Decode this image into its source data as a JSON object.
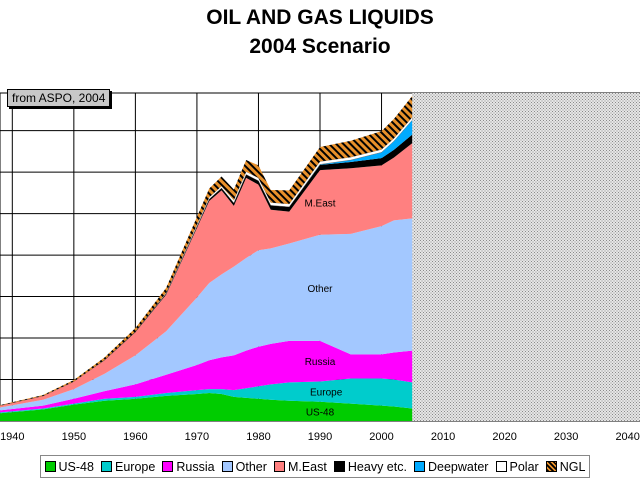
{
  "page": {
    "title_line1": "OIL AND GAS LIQUIDS",
    "title_line2": "2004 Scenario",
    "source_note": "from ASPO, 2004"
  },
  "chart_data": {
    "type": "area",
    "stacking": "stacked",
    "title": "OIL AND GAS LIQUIDS - 2004 Scenario",
    "xlabel": "",
    "ylabel": "",
    "xlim": [
      1938,
      2042
    ],
    "ylim": [
      0,
      34
    ],
    "y_gridlines": [
      4.3,
      8.6,
      12.9,
      17.2,
      21.5,
      25.8,
      30.1
    ],
    "x_ticks": [
      1940,
      1950,
      1960,
      1970,
      1980,
      1990,
      2000,
      2010,
      2020,
      2030,
      2040
    ],
    "x_tick_labels": [
      "1940",
      "1950",
      "1960",
      "1970",
      "1980",
      "1990",
      "2000",
      "2010",
      "2020",
      "2030",
      "2040"
    ],
    "grid": true,
    "shaded_region": {
      "from": 2005,
      "to": 2042,
      "meaning": "future (not drawn)"
    },
    "x": [
      1938,
      1945,
      1950,
      1955,
      1960,
      1965,
      1970,
      1972,
      1974,
      1976,
      1978,
      1980,
      1982,
      1985,
      1990,
      1995,
      2000,
      2002,
      2005
    ],
    "series": [
      {
        "name": "US-48",
        "color": "#00cc00",
        "label": "US-48",
        "values": [
          0.8,
          1.2,
          1.7,
          2.1,
          2.3,
          2.6,
          2.8,
          2.9,
          2.8,
          2.5,
          2.4,
          2.3,
          2.2,
          2.1,
          2.0,
          1.8,
          1.6,
          1.5,
          1.3
        ]
      },
      {
        "name": "Europe",
        "color": "#00cccc",
        "label": "Europe",
        "values": [
          0.1,
          0.1,
          0.1,
          0.2,
          0.2,
          0.3,
          0.4,
          0.4,
          0.5,
          0.7,
          1.0,
          1.3,
          1.6,
          1.9,
          2.1,
          2.6,
          2.8,
          2.8,
          2.7
        ]
      },
      {
        "name": "Russia",
        "color": "#ff00ff",
        "label": "Russia",
        "values": [
          0.2,
          0.3,
          0.5,
          0.8,
          1.3,
          1.9,
          2.6,
          3.0,
          3.3,
          3.6,
          3.9,
          4.1,
          4.2,
          4.3,
          4.2,
          2.5,
          2.5,
          2.8,
          3.3
        ]
      },
      {
        "name": "Other",
        "color": "#a3c8ff",
        "label": "Other",
        "values": [
          0.3,
          0.6,
          1.0,
          1.8,
          3.0,
          4.5,
          7.0,
          8.0,
          8.6,
          9.2,
          9.6,
          10.0,
          9.9,
          10.1,
          11.0,
          12.5,
          13.3,
          13.7,
          13.7
        ]
      },
      {
        "name": "M.East",
        "color": "#ff8080",
        "label": "M.East",
        "values": [
          0.2,
          0.4,
          0.8,
          1.4,
          2.4,
          3.8,
          7.2,
          8.5,
          8.7,
          6.3,
          8.3,
          6.8,
          4.0,
          3.3,
          6.7,
          6.8,
          6.3,
          6.5,
          7.8
        ]
      },
      {
        "name": "Heavy etc.",
        "color": "#000000",
        "values": [
          0.0,
          0.0,
          0.0,
          0.05,
          0.08,
          0.1,
          0.15,
          0.2,
          0.25,
          0.3,
          0.35,
          0.4,
          0.45,
          0.5,
          0.55,
          0.65,
          0.75,
          0.8,
          0.9
        ]
      },
      {
        "name": "Deepwater",
        "color": "#00aaff",
        "values": [
          0.0,
          0.0,
          0.0,
          0.0,
          0.0,
          0.0,
          0.0,
          0.0,
          0.0,
          0.0,
          0.0,
          0.0,
          0.0,
          0.0,
          0.05,
          0.2,
          0.6,
          0.9,
          1.5
        ]
      },
      {
        "name": "Polar",
        "color": "#ffffff",
        "values": [
          0.0,
          0.0,
          0.0,
          0.0,
          0.0,
          0.1,
          0.2,
          0.2,
          0.2,
          0.3,
          0.3,
          0.3,
          0.3,
          0.3,
          0.3,
          0.3,
          0.3,
          0.3,
          0.3
        ]
      },
      {
        "name": "NGL",
        "color": "#e8902a",
        "pattern": "diagonal-stripes",
        "values": [
          0.05,
          0.1,
          0.15,
          0.25,
          0.35,
          0.5,
          0.8,
          0.9,
          1.0,
          1.1,
          1.2,
          1.3,
          1.3,
          1.4,
          1.5,
          1.7,
          1.9,
          2.0,
          2.2
        ]
      }
    ]
  }
}
